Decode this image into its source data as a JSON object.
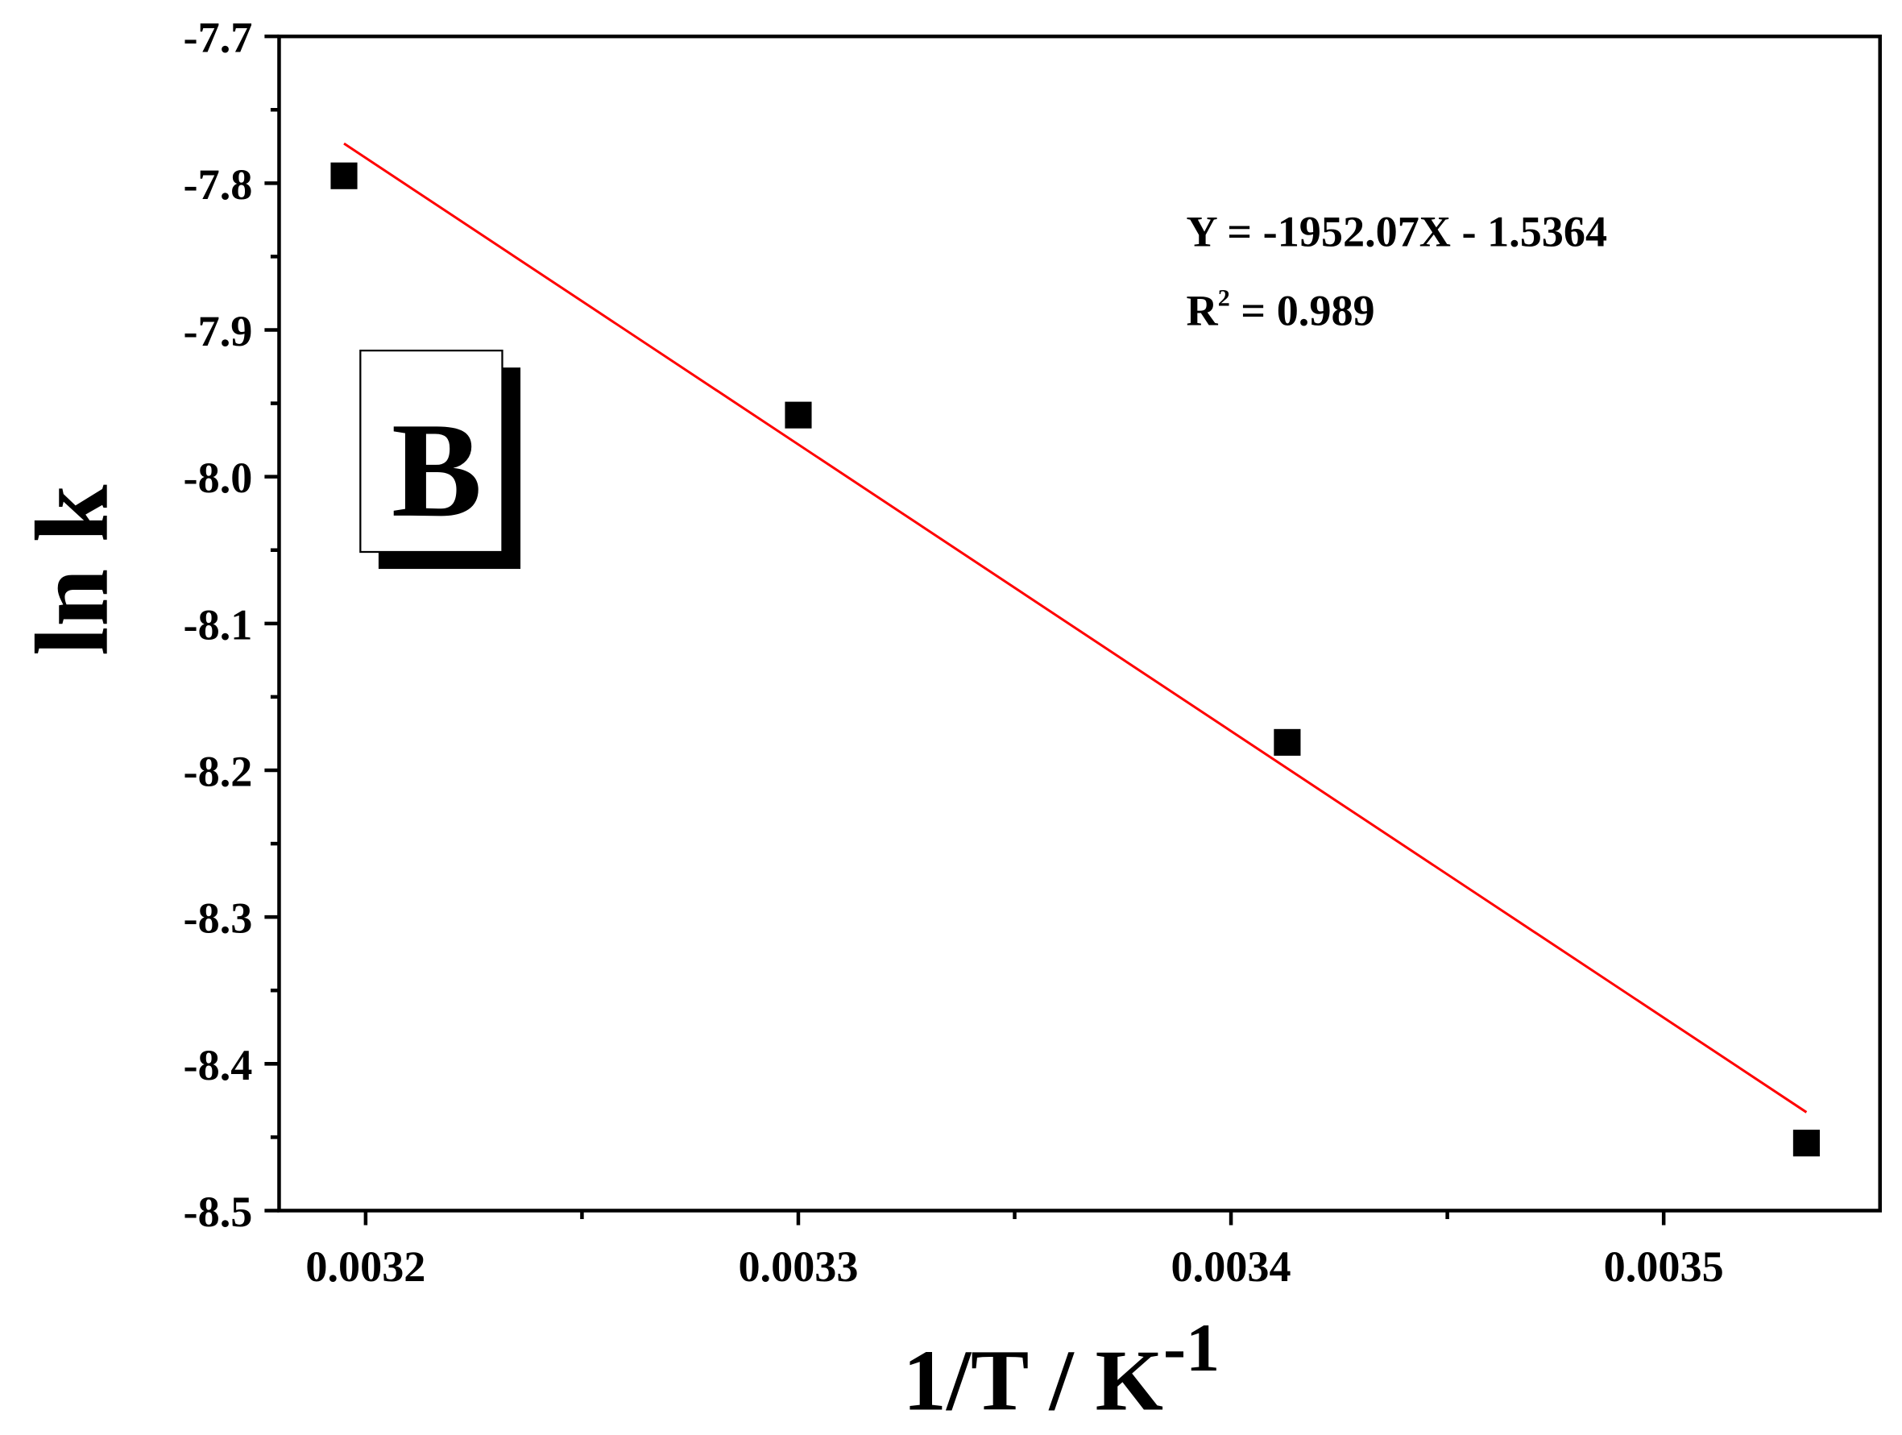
{
  "chart_data": {
    "type": "scatter",
    "xlabel": "1/T / K",
    "xlabel_sup": "-1",
    "ylabel": "ln k",
    "panel_label": "B",
    "annotation": "Y = -1952.07X - 1.5364",
    "r2_label": "R",
    "r2_sup": "2",
    "r2_value": " = 0.989",
    "xlim": [
      0.00318,
      0.00355
    ],
    "ylim": [
      -8.5,
      -7.7
    ],
    "xticks": [
      0.0032,
      0.0033,
      0.0034,
      0.0035
    ],
    "xminorticks": [
      0.00325,
      0.00335,
      0.00345
    ],
    "yticks": [
      -8.5,
      -8.4,
      -8.3,
      -8.2,
      -8.1,
      {
        "value": -8.0,
        "label": "-8.0"
      },
      -7.9,
      -7.8,
      -7.7
    ],
    "yminorticks": [
      -8.45,
      -8.35,
      -8.25,
      -8.15,
      -8.05,
      -7.95,
      -7.85,
      -7.75
    ],
    "series": [
      {
        "color": "#000000",
        "x": [
          0.003195,
          0.0033,
          0.003413,
          0.003533
        ],
        "values": [
          -7.795,
          -7.958,
          -8.181,
          -8.454
        ]
      }
    ],
    "fit_line": {
      "color": "#ff0000",
      "x": [
        0.003195,
        0.003533
      ],
      "values": [
        -7.773,
        -8.433
      ]
    }
  }
}
